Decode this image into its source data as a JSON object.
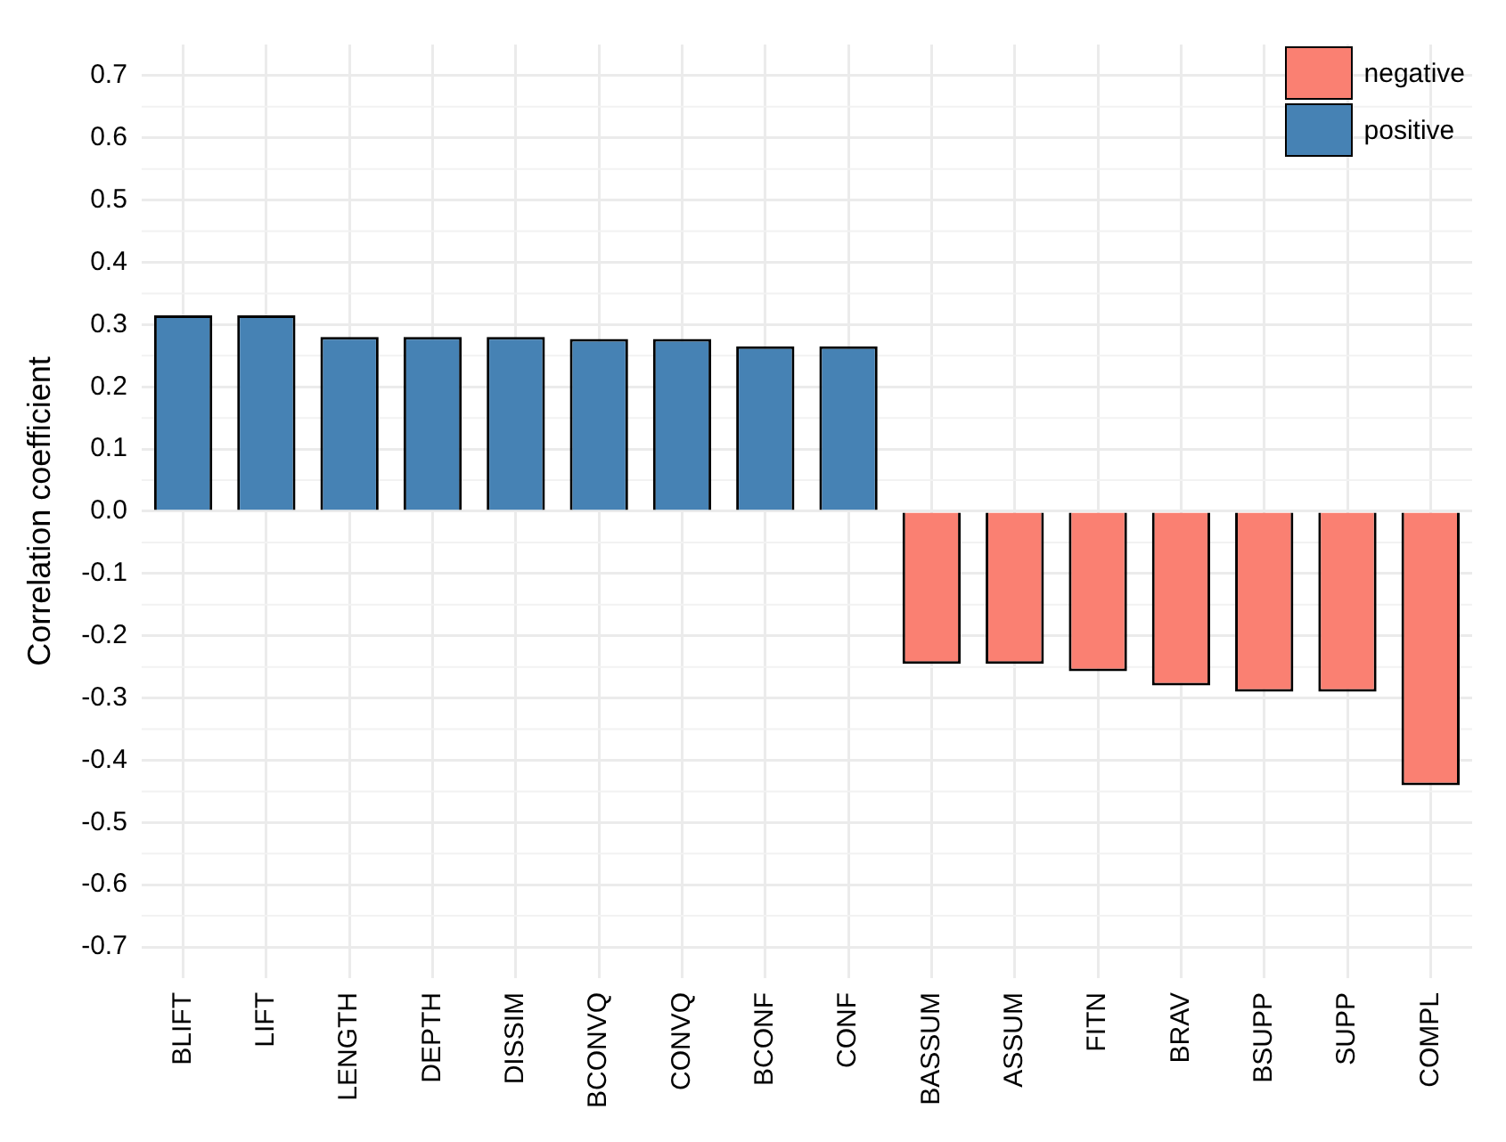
{
  "chart_data": {
    "type": "bar",
    "ylabel": "Correlation coefficient",
    "categories": [
      "BLIFT",
      "LIFT",
      "LENGTH",
      "DEPTH",
      "DISSIM",
      "BCONVQ",
      "CONVQ",
      "BCONF",
      "CONF",
      "BASSUM",
      "ASSUM",
      "FITN",
      "BRAV",
      "BSUPP",
      "SUPP",
      "COMPL"
    ],
    "series": [
      {
        "name": "negative",
        "color": "#fa8072",
        "values": [
          null,
          null,
          null,
          null,
          null,
          null,
          null,
          null,
          null,
          -0.245,
          -0.245,
          -0.257,
          -0.28,
          -0.29,
          -0.29,
          -0.44
        ]
      },
      {
        "name": "positive",
        "color": "#4682b4",
        "values": [
          0.315,
          0.315,
          0.28,
          0.28,
          0.28,
          0.277,
          0.277,
          0.265,
          0.265,
          null,
          null,
          null,
          null,
          null,
          null,
          null
        ]
      }
    ],
    "ylim": [
      -0.75,
      0.75
    ],
    "yticks": [
      -0.7,
      -0.6,
      -0.5,
      -0.4,
      -0.3,
      -0.2,
      -0.1,
      {
        "value": 0,
        "label": "0.0"
      },
      0.1,
      0.2,
      0.3,
      0.4,
      0.5,
      0.6,
      0.7
    ],
    "grid": true,
    "legend": "top right"
  }
}
